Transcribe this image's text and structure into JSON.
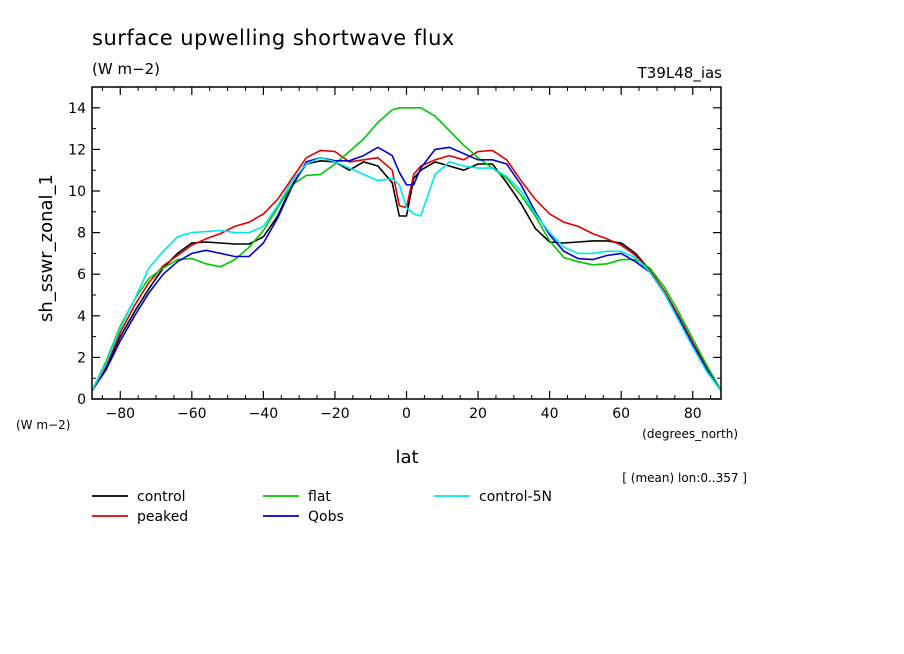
{
  "chart_data": {
    "type": "line",
    "title": "surface upwelling shortwave flux",
    "units_label": "(W m−2)",
    "run_label": "T39L48_ias",
    "xlabel": "lat",
    "xunits": "(degrees_north)",
    "ylabel": "sh_sswr_zonal_1",
    "yunits": "(W m−2)",
    "note": "[ (mean) lon:0..357 ]",
    "xlim": [
      -87.9,
      87.9
    ],
    "ylim": [
      0,
      15
    ],
    "xticks": [
      -80,
      -60,
      -40,
      -20,
      0,
      20,
      40,
      60,
      80
    ],
    "yticks": [
      0,
      2,
      4,
      6,
      8,
      10,
      12,
      14
    ],
    "x": [
      -87.9,
      -84,
      -80,
      -76,
      -72,
      -68,
      -64,
      -60,
      -56,
      -52,
      -48,
      -44,
      -40,
      -36,
      -32,
      -28,
      -24,
      -20,
      -16,
      -12,
      -8,
      -4,
      -2,
      0,
      2,
      4,
      8,
      12,
      16,
      20,
      24,
      28,
      32,
      36,
      40,
      44,
      48,
      52,
      56,
      60,
      64,
      68,
      72,
      76,
      80,
      84,
      87.9
    ],
    "series": [
      {
        "name": "control",
        "color": "#000000",
        "values": [
          0.4,
          1.5,
          3.0,
          4.2,
          5.3,
          6.3,
          7.0,
          7.5,
          7.55,
          7.5,
          7.45,
          7.45,
          7.8,
          8.8,
          10.3,
          11.3,
          11.45,
          11.4,
          11.0,
          11.4,
          11.2,
          10.4,
          8.8,
          8.8,
          10.6,
          11.0,
          11.4,
          11.2,
          11.0,
          11.3,
          11.3,
          10.4,
          9.4,
          8.2,
          7.55,
          7.5,
          7.55,
          7.6,
          7.6,
          7.5,
          7.0,
          6.2,
          5.2,
          4.0,
          2.7,
          1.5,
          0.4
        ]
      },
      {
        "name": "peaked",
        "color": "#e00000",
        "values": [
          0.4,
          1.6,
          3.2,
          4.5,
          5.6,
          6.4,
          6.9,
          7.4,
          7.7,
          7.95,
          8.3,
          8.5,
          8.9,
          9.6,
          10.6,
          11.6,
          11.95,
          11.9,
          11.4,
          11.5,
          11.6,
          11.0,
          9.3,
          9.2,
          10.8,
          11.2,
          11.5,
          11.7,
          11.5,
          11.9,
          11.95,
          11.5,
          10.5,
          9.6,
          8.9,
          8.5,
          8.3,
          7.95,
          7.7,
          7.4,
          6.9,
          6.2,
          5.2,
          4.0,
          2.7,
          1.5,
          0.4
        ]
      },
      {
        "name": "flat",
        "color": "#00c800",
        "values": [
          0.4,
          1.8,
          3.5,
          4.8,
          5.8,
          6.3,
          6.7,
          6.75,
          6.5,
          6.35,
          6.7,
          7.3,
          8.1,
          9.2,
          10.3,
          10.75,
          10.8,
          11.3,
          11.9,
          12.5,
          13.3,
          13.9,
          14.0,
          14.0,
          14.0,
          14.0,
          13.6,
          12.9,
          12.2,
          11.6,
          11.1,
          10.6,
          9.8,
          8.8,
          7.6,
          6.8,
          6.6,
          6.45,
          6.5,
          6.7,
          6.7,
          6.3,
          5.4,
          4.2,
          2.9,
          1.6,
          0.4
        ]
      },
      {
        "name": "Qobs",
        "color": "#0000cc",
        "values": [
          0.4,
          1.4,
          2.8,
          4.0,
          5.1,
          6.0,
          6.6,
          7.0,
          7.15,
          7.0,
          6.85,
          6.85,
          7.5,
          8.7,
          10.2,
          11.4,
          11.6,
          11.45,
          11.45,
          11.7,
          12.1,
          11.7,
          10.9,
          10.3,
          10.3,
          11.1,
          12.0,
          12.1,
          11.8,
          11.5,
          11.5,
          11.3,
          10.3,
          9.0,
          7.9,
          7.1,
          6.75,
          6.7,
          6.9,
          7.0,
          6.6,
          6.1,
          5.1,
          3.9,
          2.6,
          1.4,
          0.4
        ]
      },
      {
        "name": "control-5N",
        "color": "#00e5ee",
        "values": [
          0.4,
          1.7,
          3.4,
          4.8,
          6.3,
          7.1,
          7.8,
          8.0,
          8.05,
          8.1,
          8.0,
          8.0,
          8.3,
          9.3,
          10.5,
          11.3,
          11.6,
          11.4,
          11.1,
          10.8,
          10.5,
          10.6,
          10.3,
          9.2,
          8.9,
          8.8,
          10.8,
          11.4,
          11.2,
          11.1,
          11.1,
          10.7,
          10.0,
          8.9,
          8.0,
          7.3,
          7.0,
          7.0,
          7.1,
          7.1,
          6.8,
          6.1,
          5.1,
          3.8,
          2.5,
          1.3,
          0.4
        ]
      }
    ]
  }
}
